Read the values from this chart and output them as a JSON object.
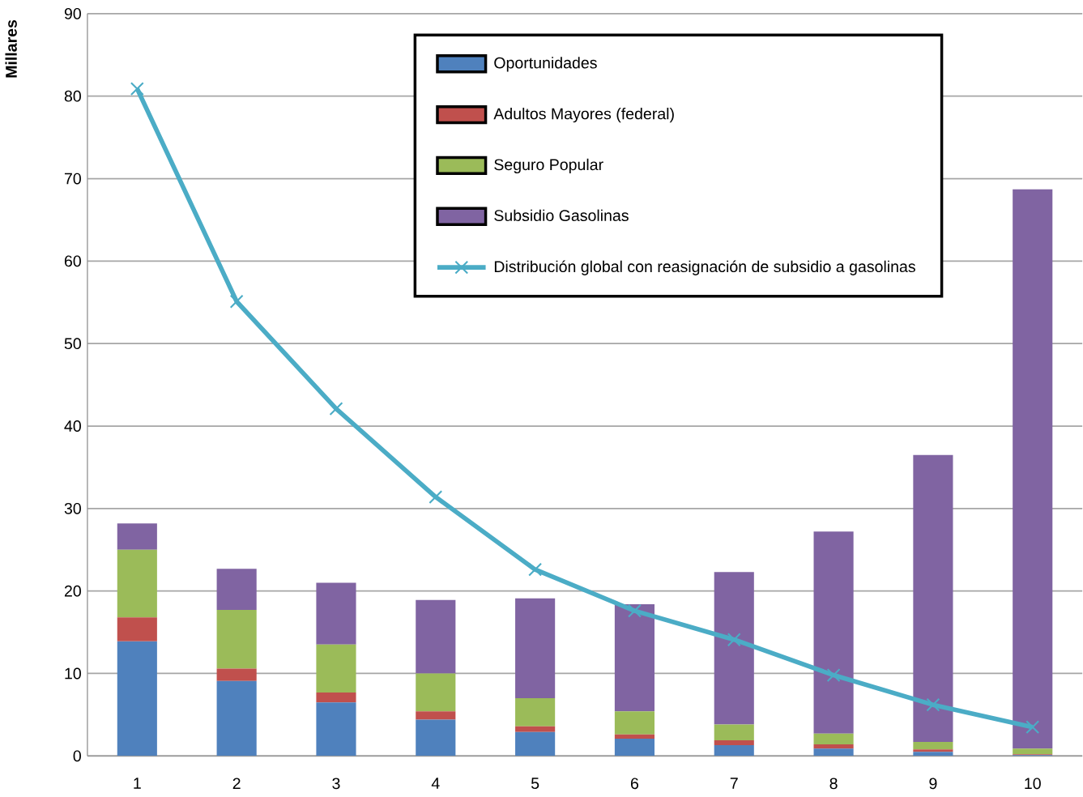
{
  "chart_data": {
    "type": "bar",
    "stacked": true,
    "ylabel": "Millares",
    "categories": [
      "1",
      "2",
      "3",
      "4",
      "5",
      "6",
      "7",
      "8",
      "9",
      "10"
    ],
    "series": [
      {
        "name": "Oportunidades",
        "color": "#4f81bd",
        "values": [
          13.9,
          9.1,
          6.5,
          4.4,
          2.9,
          2.1,
          1.3,
          0.9,
          0.5,
          0.1
        ]
      },
      {
        "name": "Adultos Mayores (federal)",
        "color": "#c0504d",
        "values": [
          2.9,
          1.5,
          1.2,
          1.0,
          0.7,
          0.5,
          0.6,
          0.5,
          0.3,
          0.1
        ]
      },
      {
        "name": "Seguro Popular",
        "color": "#9bbb59",
        "values": [
          8.2,
          7.1,
          5.8,
          4.6,
          3.4,
          2.8,
          1.9,
          1.3,
          0.9,
          0.7
        ]
      },
      {
        "name": "Subsidio Gasolinas",
        "color": "#8064a2",
        "values": [
          3.2,
          5.0,
          7.5,
          8.9,
          12.1,
          13.0,
          18.5,
          24.5,
          34.8,
          67.8
        ]
      },
      {
        "name": "Distribución global con reasignación de subsidio  a gasolinas",
        "type": "line",
        "marker": "cross",
        "color": "#4bacc6",
        "values": [
          80.9,
          55.1,
          42.1,
          31.4,
          22.6,
          17.6,
          14.1,
          9.8,
          6.2,
          3.5
        ]
      }
    ],
    "ylim": [
      0,
      90
    ],
    "yticks": [
      0,
      10,
      20,
      30,
      40,
      50,
      60,
      70,
      80,
      90
    ],
    "grid": "y",
    "legend": "top"
  }
}
